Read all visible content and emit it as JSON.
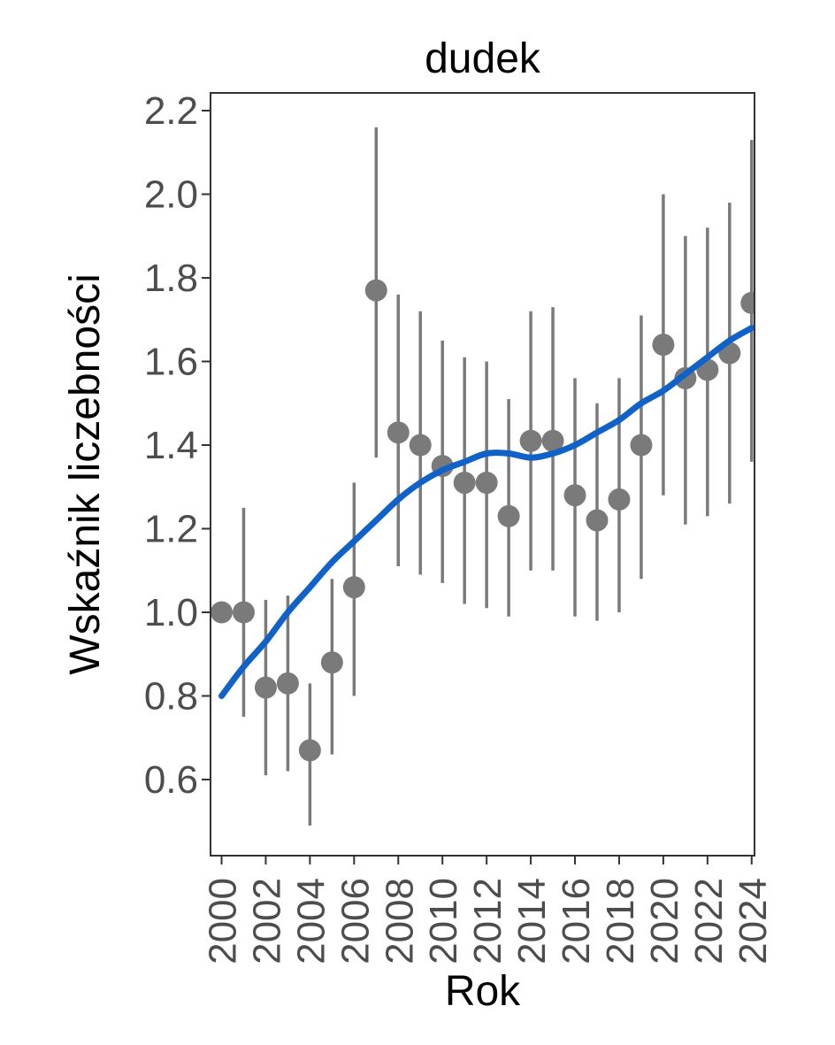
{
  "colors": {
    "point_gray": "#7a7a7a",
    "errorbar_gray": "#7a7a7a",
    "trend_blue": "#1162c8",
    "tick_text": "#4d4d4d",
    "title_text": "#000000",
    "axis_line": "#333333",
    "background": "#ffffff"
  },
  "chart_data": {
    "type": "scatter",
    "title": "dudek",
    "xlabel": "Rok",
    "ylabel": "Wskaźnik liczebności",
    "grid": false,
    "legend": "none",
    "xlim": [
      1999.5,
      2024.15
    ],
    "ylim": [
      0.42,
      2.24
    ],
    "x_tick_years": [
      2000,
      2002,
      2004,
      2006,
      2008,
      2010,
      2012,
      2014,
      2016,
      2018,
      2020,
      2022,
      2024
    ],
    "x_tick_labels": [
      "2000",
      "2002",
      "2004",
      "2006",
      "2008",
      "2010",
      "2012",
      "2014",
      "2016",
      "2018",
      "2020",
      "2022",
      "2024"
    ],
    "y_tick_values": [
      0.6,
      0.8,
      1.0,
      1.2,
      1.4,
      1.6,
      1.8,
      2.0,
      2.2
    ],
    "y_tick_labels": [
      "0.6",
      "0.8",
      "1.0",
      "1.2",
      "1.4",
      "1.6",
      "1.8",
      "2.0",
      "2.2"
    ],
    "series": [
      {
        "name": "abundance-index-points",
        "points": [
          {
            "year": 2000,
            "value": 1.0,
            "lo": null,
            "hi": null
          },
          {
            "year": 2001,
            "value": 1.0,
            "lo": 0.75,
            "hi": 1.25
          },
          {
            "year": 2002,
            "value": 0.82,
            "lo": 0.61,
            "hi": 1.03
          },
          {
            "year": 2003,
            "value": 0.83,
            "lo": 0.62,
            "hi": 1.04
          },
          {
            "year": 2004,
            "value": 0.67,
            "lo": 0.49,
            "hi": 0.83
          },
          {
            "year": 2005,
            "value": 0.88,
            "lo": 0.66,
            "hi": 1.08
          },
          {
            "year": 2006,
            "value": 1.06,
            "lo": 0.8,
            "hi": 1.31
          },
          {
            "year": 2007,
            "value": 1.77,
            "lo": 1.37,
            "hi": 2.16
          },
          {
            "year": 2008,
            "value": 1.43,
            "lo": 1.11,
            "hi": 1.76
          },
          {
            "year": 2009,
            "value": 1.4,
            "lo": 1.09,
            "hi": 1.72
          },
          {
            "year": 2010,
            "value": 1.35,
            "lo": 1.07,
            "hi": 1.65
          },
          {
            "year": 2011,
            "value": 1.31,
            "lo": 1.02,
            "hi": 1.61
          },
          {
            "year": 2012,
            "value": 1.31,
            "lo": 1.01,
            "hi": 1.6
          },
          {
            "year": 2013,
            "value": 1.23,
            "lo": 0.99,
            "hi": 1.51
          },
          {
            "year": 2014,
            "value": 1.41,
            "lo": 1.1,
            "hi": 1.72
          },
          {
            "year": 2015,
            "value": 1.41,
            "lo": 1.1,
            "hi": 1.73
          },
          {
            "year": 2016,
            "value": 1.28,
            "lo": 0.99,
            "hi": 1.56
          },
          {
            "year": 2017,
            "value": 1.22,
            "lo": 0.98,
            "hi": 1.5
          },
          {
            "year": 2018,
            "value": 1.27,
            "lo": 1.0,
            "hi": 1.56
          },
          {
            "year": 2019,
            "value": 1.4,
            "lo": 1.08,
            "hi": 1.71
          },
          {
            "year": 2020,
            "value": 1.64,
            "lo": 1.28,
            "hi": 2.0
          },
          {
            "year": 2021,
            "value": 1.56,
            "lo": 1.21,
            "hi": 1.9
          },
          {
            "year": 2022,
            "value": 1.58,
            "lo": 1.23,
            "hi": 1.92
          },
          {
            "year": 2023,
            "value": 1.62,
            "lo": 1.26,
            "hi": 1.98
          },
          {
            "year": 2024,
            "value": 1.74,
            "lo": 1.36,
            "hi": 2.13
          }
        ]
      }
    ],
    "trend": {
      "name": "smoothed-trend-line",
      "x": [
        2000,
        2001,
        2002,
        2003,
        2004,
        2005,
        2006,
        2007,
        2008,
        2009,
        2010,
        2011,
        2012,
        2013,
        2014,
        2015,
        2016,
        2017,
        2018,
        2019,
        2020,
        2021,
        2022,
        2023,
        2024
      ],
      "y": [
        0.8,
        0.87,
        0.93,
        1.0,
        1.06,
        1.12,
        1.17,
        1.22,
        1.27,
        1.31,
        1.34,
        1.36,
        1.38,
        1.38,
        1.37,
        1.38,
        1.4,
        1.43,
        1.46,
        1.5,
        1.53,
        1.57,
        1.61,
        1.65,
        1.68
      ]
    }
  }
}
